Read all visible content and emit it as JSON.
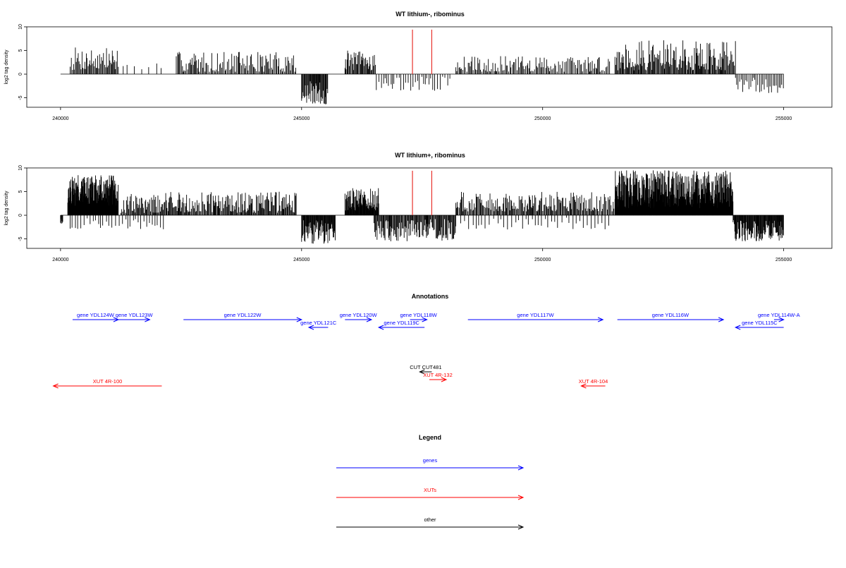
{
  "chart_data": [
    {
      "type": "bar",
      "title": "WT lithium-, ribominus",
      "ylabel": "log2 tag density",
      "xlim": [
        239300,
        256000
      ],
      "ylim": [
        -7,
        10
      ],
      "xticks": [
        240000,
        245000,
        250000,
        255000
      ],
      "yticks": [
        -5,
        0,
        5,
        10
      ],
      "baseline": {
        "from": 240000,
        "to": 255000
      },
      "marker_lines": [
        247300,
        247700
      ],
      "marker_color": "#e8322c",
      "bar_color": "#000000",
      "segments": [
        {
          "from": 240200,
          "to": 241200,
          "min": 0.8,
          "max": 5.8,
          "step": 18
        },
        {
          "from": 241300,
          "to": 242200,
          "min": 1.0,
          "max": 2.4,
          "step": 120
        },
        {
          "from": 242400,
          "to": 244900,
          "min": 0.5,
          "max": 4.8,
          "step": 22
        },
        {
          "from": 245000,
          "to": 245550,
          "min": -6.5,
          "max": -1.5,
          "step": 14
        },
        {
          "from": 245900,
          "to": 246550,
          "min": 0.8,
          "max": 5.0,
          "step": 16
        },
        {
          "from": 246550,
          "to": 248100,
          "min": -3.5,
          "max": -0.5,
          "step": 45
        },
        {
          "from": 248200,
          "to": 251400,
          "min": 0.5,
          "max": 3.8,
          "step": 24
        },
        {
          "from": 251500,
          "to": 254000,
          "min": 0.8,
          "max": 7.2,
          "step": 16
        },
        {
          "from": 254000,
          "to": 255000,
          "min": -4.0,
          "max": -0.5,
          "step": 30
        }
      ],
      "seed": 7
    },
    {
      "type": "bar",
      "title": "WT lithium+, ribominus",
      "ylabel": "log2 tag density",
      "xlim": [
        239300,
        256000
      ],
      "ylim": [
        -7,
        10
      ],
      "xticks": [
        240000,
        245000,
        250000,
        255000
      ],
      "yticks": [
        -5,
        0,
        5,
        10
      ],
      "baseline": {
        "from": 240000,
        "to": 255000
      },
      "marker_lines": [
        247300,
        247700
      ],
      "marker_color": "#e8322c",
      "bar_color": "#000000",
      "segments": [
        {
          "from": 240000,
          "to": 240050,
          "min": -1.8,
          "max": -0.5,
          "step": 10
        },
        {
          "from": 240150,
          "to": 241200,
          "min": 2.0,
          "max": 8.5,
          "step": 5
        },
        {
          "from": 240200,
          "to": 242200,
          "min": -3.0,
          "max": -0.5,
          "step": 60
        },
        {
          "from": 241250,
          "to": 244900,
          "min": 0.5,
          "max": 5.0,
          "step": 16
        },
        {
          "from": 245000,
          "to": 245700,
          "min": -6.0,
          "max": -1.0,
          "step": 10
        },
        {
          "from": 245900,
          "to": 246600,
          "min": 1.0,
          "max": 6.0,
          "step": 8
        },
        {
          "from": 246500,
          "to": 248200,
          "min": -5.5,
          "max": -0.8,
          "step": 14
        },
        {
          "from": 248200,
          "to": 251500,
          "min": 0.8,
          "max": 5.0,
          "step": 18
        },
        {
          "from": 248300,
          "to": 251400,
          "min": -3.0,
          "max": -0.5,
          "step": 70
        },
        {
          "from": 251500,
          "to": 253950,
          "min": 1.5,
          "max": 9.5,
          "step": 5
        },
        {
          "from": 253950,
          "to": 255000,
          "min": -5.5,
          "max": -1.0,
          "step": 10
        }
      ],
      "seed": 19
    }
  ],
  "annotations": {
    "title": "Annotations",
    "xlim": [
      239300,
      256000
    ],
    "features": [
      {
        "label": "gene YDL124W",
        "start": 240250,
        "end": 241200,
        "strand": "+",
        "color": "#0000ff",
        "row": 0
      },
      {
        "label": "gene YDL123W",
        "start": 241200,
        "end": 241850,
        "strand": "+",
        "color": "#0000ff",
        "row": 0
      },
      {
        "label": "gene YDL122W",
        "start": 242550,
        "end": 245000,
        "strand": "+",
        "color": "#0000ff",
        "row": 0
      },
      {
        "label": "gene YDL121C",
        "start": 245150,
        "end": 245550,
        "strand": "-",
        "color": "#0000ff",
        "row": 1
      },
      {
        "label": "gene YDL120W",
        "start": 245900,
        "end": 246450,
        "strand": "+",
        "color": "#0000ff",
        "row": 0
      },
      {
        "label": "gene YDL119C",
        "start": 246600,
        "end": 247550,
        "strand": "-",
        "color": "#0000ff",
        "row": 1
      },
      {
        "label": "gene YDL118W",
        "start": 247250,
        "end": 247600,
        "strand": "+",
        "color": "#0000ff",
        "row": 0
      },
      {
        "label": "gene YDL117W",
        "start": 248450,
        "end": 251250,
        "strand": "+",
        "color": "#0000ff",
        "row": 0
      },
      {
        "label": "gene YDL116W",
        "start": 251550,
        "end": 253750,
        "strand": "+",
        "color": "#0000ff",
        "row": 0
      },
      {
        "label": "gene YDL115C",
        "start": 254000,
        "end": 255000,
        "strand": "-",
        "color": "#0000ff",
        "row": 1
      },
      {
        "label": "gene YDL114W-A",
        "start": 254800,
        "end": 255000,
        "strand": "+",
        "color": "#0000ff",
        "row": 0
      },
      {
        "label": "CUT CUT481",
        "start": 247450,
        "end": 247700,
        "strand": "-",
        "color": "#000000",
        "row": 2
      },
      {
        "label": "XUT 4R-132",
        "start": 247650,
        "end": 248000,
        "strand": "+",
        "color": "#ff0000",
        "row": 3
      },
      {
        "label": "XUT 4R-100",
        "start": 239850,
        "end": 242100,
        "strand": "-",
        "color": "#ff0000",
        "row": 4
      },
      {
        "label": "XUT 4R-104",
        "start": 250800,
        "end": 251300,
        "strand": "-",
        "color": "#ff0000",
        "row": 4
      }
    ]
  },
  "legend": {
    "title": "Legend",
    "items": [
      {
        "label": "genes",
        "color": "#0000ff"
      },
      {
        "label": "XUTs",
        "color": "#ff0000"
      },
      {
        "label": "other",
        "color": "#000000"
      }
    ]
  }
}
